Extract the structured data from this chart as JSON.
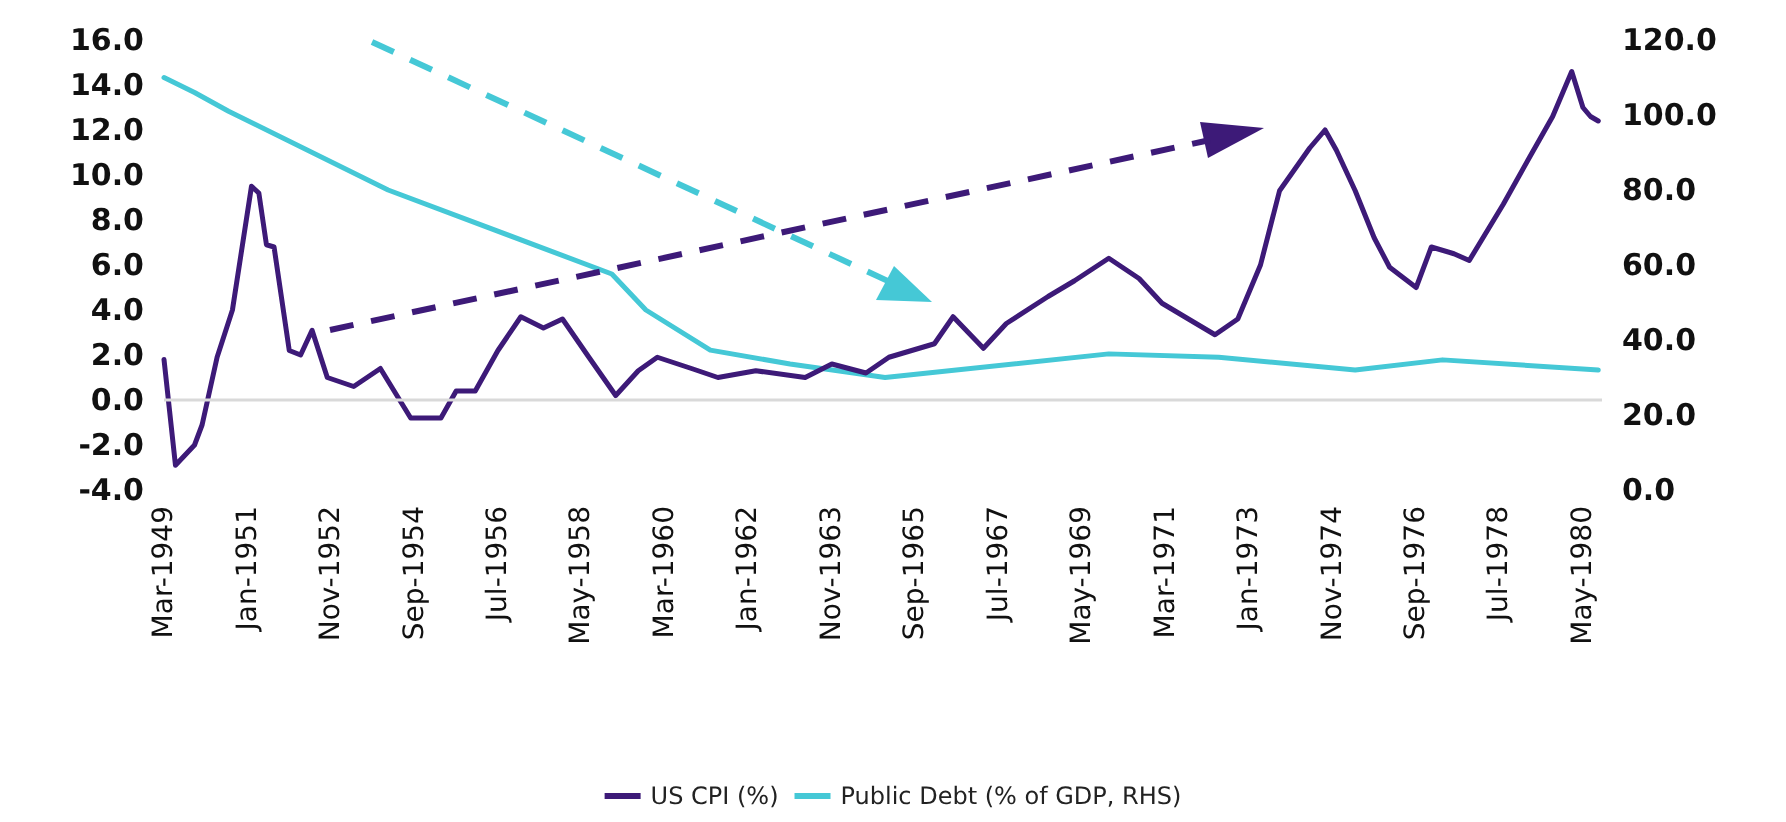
{
  "chart_data": {
    "type": "line",
    "xlim": [
      "1949-03",
      "1980-10"
    ],
    "xticks": [
      {
        "value": "1949-03",
        "label": "Mar-1949"
      },
      {
        "value": "1951-01",
        "label": "Jan-1951"
      },
      {
        "value": "1952-11",
        "label": "Nov-1952"
      },
      {
        "value": "1954-09",
        "label": "Sep-1954"
      },
      {
        "value": "1956-07",
        "label": "Jul-1956"
      },
      {
        "value": "1958-05",
        "label": "May-1958"
      },
      {
        "value": "1960-03",
        "label": "Mar-1960"
      },
      {
        "value": "1962-01",
        "label": "Jan-1962"
      },
      {
        "value": "1963-11",
        "label": "Nov-1963"
      },
      {
        "value": "1965-09",
        "label": "Sep-1965"
      },
      {
        "value": "1967-07",
        "label": "Jul-1967"
      },
      {
        "value": "1969-05",
        "label": "May-1969"
      },
      {
        "value": "1971-03",
        "label": "Mar-1971"
      },
      {
        "value": "1973-01",
        "label": "Jan-1973"
      },
      {
        "value": "1974-11",
        "label": "Nov-1974"
      },
      {
        "value": "1976-09",
        "label": "Sep-1976"
      },
      {
        "value": "1978-07",
        "label": "Jul-1978"
      },
      {
        "value": "1980-05",
        "label": "May-1980"
      }
    ],
    "ylim": [
      -4,
      16
    ],
    "yticks": [
      {
        "value": -4,
        "label": "-4.0"
      },
      {
        "value": -2,
        "label": "-2.0"
      },
      {
        "value": 0,
        "label": "0.0"
      },
      {
        "value": 2,
        "label": "2.0"
      },
      {
        "value": 4,
        "label": "4.0"
      },
      {
        "value": 6,
        "label": "6.0"
      },
      {
        "value": 8,
        "label": "8.0"
      },
      {
        "value": 10,
        "label": "10.0"
      },
      {
        "value": 12,
        "label": "12.0"
      },
      {
        "value": 14,
        "label": "14.0"
      },
      {
        "value": 16,
        "label": "16.0"
      }
    ],
    "y2lim": [
      0,
      120
    ],
    "y2ticks": [
      {
        "value": 0,
        "label": "0.0"
      },
      {
        "value": 20,
        "label": "20.0"
      },
      {
        "value": 40,
        "label": "40.0"
      },
      {
        "value": 60,
        "label": "60.0"
      },
      {
        "value": 80,
        "label": "80.0"
      },
      {
        "value": 100,
        "label": "100.0"
      },
      {
        "value": 120,
        "label": "120.0"
      }
    ],
    "series": [
      {
        "name": "US CPI (%)",
        "color": "#3d1a78",
        "x": [
          "1949-03",
          "1949-06",
          "1949-11",
          "1950-01",
          "1950-05",
          "1950-09",
          "1951-02",
          "1951-04",
          "1951-06",
          "1951-08",
          "1951-12",
          "1952-03",
          "1952-06",
          "1952-10",
          "1953-05",
          "1953-12",
          "1954-08",
          "1955-04",
          "1955-08",
          "1956-01",
          "1956-07",
          "1957-01",
          "1957-07",
          "1957-12",
          "1958-07",
          "1959-02",
          "1959-08",
          "1960-01",
          "1960-10",
          "1961-05",
          "1962-03",
          "1963-04",
          "1963-11",
          "1964-08",
          "1965-02",
          "1966-02",
          "1966-07",
          "1967-03",
          "1967-09",
          "1968-08",
          "1969-03",
          "1969-12",
          "1970-08",
          "1971-02",
          "1971-09",
          "1972-04",
          "1972-10",
          "1973-04",
          "1973-09",
          "1974-05",
          "1974-09",
          "1974-12",
          "1975-05",
          "1975-10",
          "1976-02",
          "1976-09",
          "1977-01",
          "1977-07",
          "1977-11",
          "1978-08",
          "1979-03",
          "1979-09",
          "1980-02",
          "1980-05",
          "1980-07",
          "1980-09"
        ],
        "values": [
          1.8,
          -2.9,
          -2.0,
          -1.1,
          1.9,
          4.0,
          9.5,
          9.2,
          6.9,
          6.8,
          2.2,
          2.0,
          3.1,
          1.0,
          0.6,
          1.4,
          -0.8,
          -0.8,
          0.4,
          0.4,
          2.2,
          3.7,
          3.2,
          3.6,
          1.9,
          0.2,
          1.3,
          1.9,
          1.4,
          1.0,
          1.3,
          1.0,
          1.6,
          1.2,
          1.9,
          2.5,
          3.7,
          2.3,
          3.4,
          4.6,
          5.3,
          6.3,
          5.4,
          4.3,
          3.6,
          2.9,
          3.6,
          6.0,
          9.3,
          11.2,
          12.0,
          11.1,
          9.3,
          7.2,
          5.9,
          5.0,
          6.8,
          6.5,
          6.2,
          8.7,
          10.8,
          12.6,
          14.6,
          13.0,
          12.6,
          12.4
        ]
      },
      {
        "name": "Public Debt (% of GDP, RHS)",
        "color": "#45c8d6",
        "axis": "y2",
        "x": [
          "1949-03",
          "1949-11",
          "1950-08",
          "1954-02",
          "1959-01",
          "1959-10",
          "1961-03",
          "1962-12",
          "1965-01",
          "1969-12",
          "1972-05",
          "1975-05",
          "1977-04",
          "1980-09"
        ],
        "values": [
          110,
          106,
          101,
          80,
          57.6,
          48,
          37.3,
          33.6,
          30,
          36.3,
          35.4,
          32,
          34.7,
          32
        ]
      }
    ],
    "ref_lines": [
      {
        "axis": "y",
        "value": 0,
        "color": "#d9d9d9"
      }
    ],
    "legend": "bottom",
    "grid": false,
    "marker": "none",
    "line_style": "solid"
  }
}
